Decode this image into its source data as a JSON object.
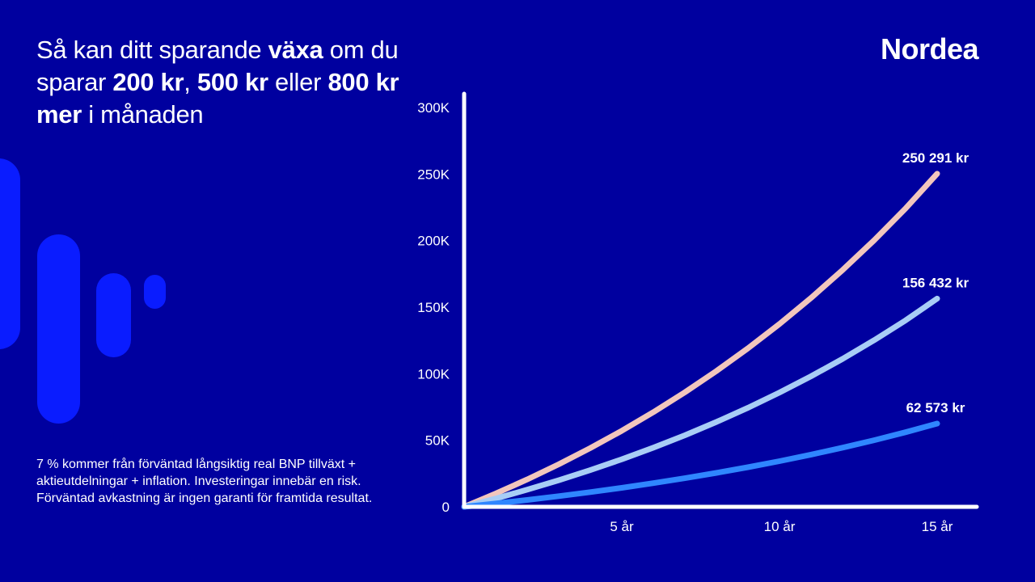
{
  "headline": {
    "p1": "Så kan ditt sparande ",
    "b1": "växa",
    "p2": " om du sparar ",
    "b2": "200 kr",
    "p3": ", ",
    "b3": "500 kr",
    "p4": " eller ",
    "b4": "800 kr mer",
    "p5": " i månaden"
  },
  "logo": "Nordea",
  "footnote": "7 % kommer från förväntad långsiktig real BNP tillväxt + aktieutdelningar + inflation. Investeringar innebär en risk. Förväntad avkastning är ingen garanti för framtida resultat.",
  "colors": {
    "background": "#00009f",
    "decoration": "#0a1cff",
    "series_800": "#f2c6bd",
    "series_500": "#a8cdf6",
    "series_200": "#2f86ff"
  },
  "chart_data": {
    "type": "line",
    "x": [
      0,
      1,
      2,
      3,
      4,
      5,
      6,
      7,
      8,
      9,
      10,
      11,
      12,
      13,
      14,
      15
    ],
    "xlim": [
      0,
      16
    ],
    "ylim": [
      0,
      300000
    ],
    "xticks": [
      5,
      10,
      15
    ],
    "xtick_labels": [
      "5 år",
      "10 år",
      "15 år"
    ],
    "yticks": [
      0,
      50000,
      100000,
      150000,
      200000,
      250000,
      300000
    ],
    "ytick_labels": [
      "0",
      "50K",
      "100K",
      "150K",
      "200K",
      "250K",
      "300K"
    ],
    "grid": false,
    "series": [
      {
        "color": "#f2c6bd",
        "values": [
          0,
          9937,
          20573,
          31954,
          44130,
          57162,
          71108,
          86029,
          101995,
          119077,
          137358,
          156918,
          177848,
          200243,
          224208,
          250291
        ],
        "end_label": "250 291 kr"
      },
      {
        "color": "#a8cdf6",
        "values": [
          0,
          6211,
          12858,
          19971,
          27581,
          35726,
          44442,
          53768,
          63747,
          74423,
          85848,
          98074,
          111155,
          125152,
          140130,
          156432
        ],
        "end_label": "156 432 kr"
      },
      {
        "color": "#2f86ff",
        "values": [
          0,
          2484,
          5143,
          7988,
          11032,
          14290,
          17776,
          21507,
          25499,
          29769,
          34339,
          39230,
          44462,
          50061,
          56052,
          62573
        ],
        "end_label": "62 573 kr"
      }
    ]
  }
}
